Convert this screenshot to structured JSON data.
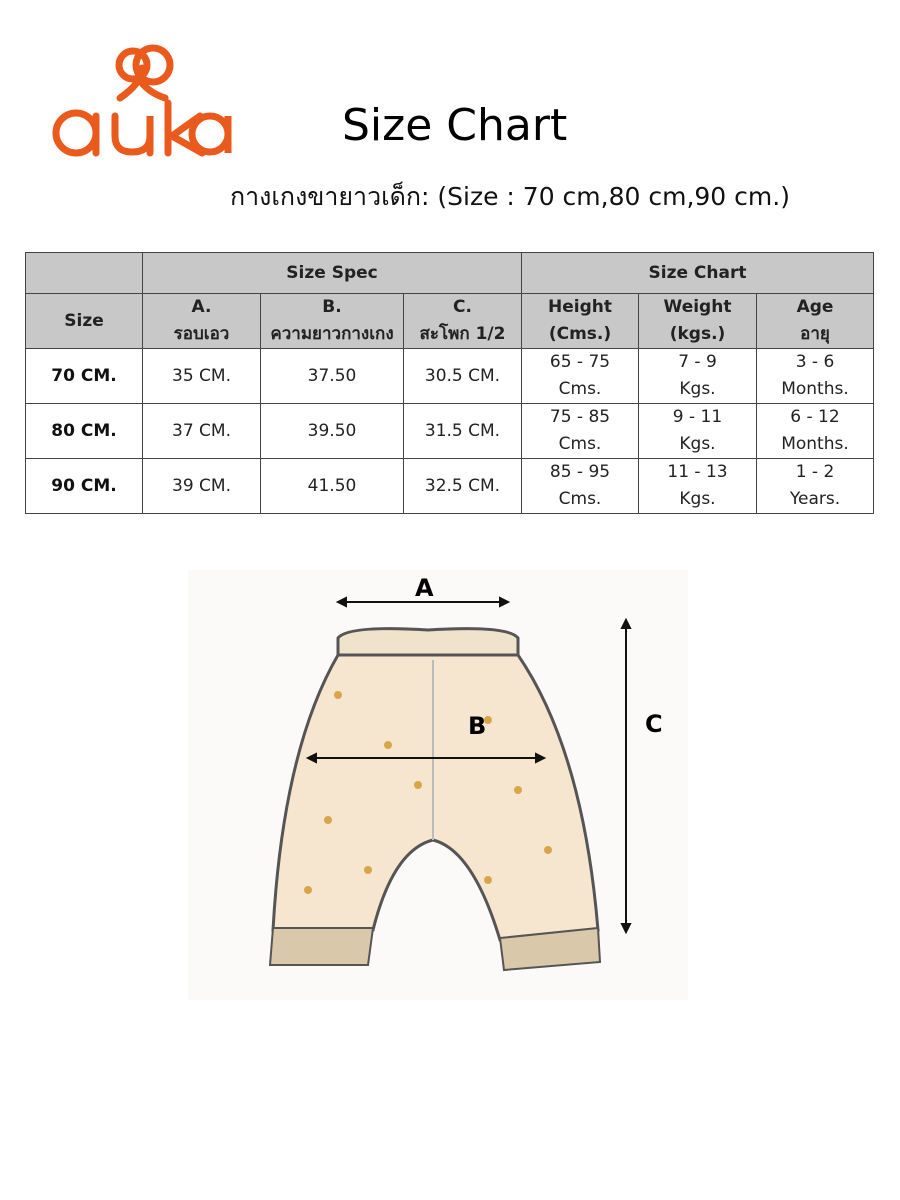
{
  "brand": {
    "name": "auka",
    "color": "#ea5a1c"
  },
  "title": "Size Chart",
  "subtitle": "กางเกงขายาวเด็ก: (Size : 70 cm,80 cm,90 cm.)",
  "table": {
    "group_headers": [
      "Size Spec",
      "Size Chart"
    ],
    "size_header": "Size",
    "columns": [
      {
        "line1": "A.",
        "line2": "รอบเอว"
      },
      {
        "line1": "B.",
        "line2": "ความยาวกางเกง"
      },
      {
        "line1": "C.",
        "line2": "สะโพก 1/2"
      },
      {
        "line1": "Height",
        "line2": "(Cms.)"
      },
      {
        "line1": "Weight",
        "line2": "(kgs.)"
      },
      {
        "line1": "Age",
        "line2": "อายุ"
      }
    ],
    "rows": [
      {
        "size": "70 CM.",
        "a": "35 CM.",
        "b": "37.50",
        "c": "30.5 CM.",
        "height": [
          "65 - 75",
          "Cms."
        ],
        "weight": [
          "7 - 9",
          "Kgs."
        ],
        "age": [
          "3 - 6",
          "Months."
        ]
      },
      {
        "size": "80 CM.",
        "a": "37 CM.",
        "b": "39.50",
        "c": "31.5 CM.",
        "height": [
          "75 - 85",
          "Cms."
        ],
        "weight": [
          "9 - 11",
          "Kgs."
        ],
        "age": [
          "6 - 12",
          "Months."
        ]
      },
      {
        "size": "90 CM.",
        "a": "39 CM.",
        "b": "41.50",
        "c": "32.5 CM.",
        "height": [
          "85 - 95",
          "Cms."
        ],
        "weight": [
          "11 - 13",
          "Kgs."
        ],
        "age": [
          "1 - 2",
          "Years."
        ]
      }
    ]
  },
  "diagram": {
    "label_a": "A",
    "label_b": "B",
    "label_c": "C",
    "fabric_color": "#f7e6cf",
    "cuff_color": "#d9c9aa"
  }
}
